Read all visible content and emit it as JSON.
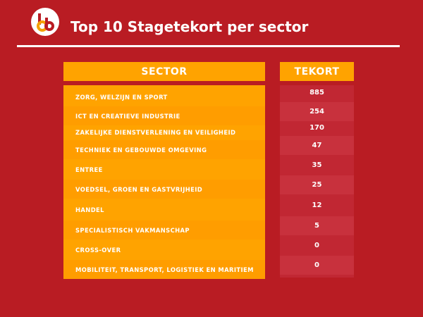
{
  "title": "Top 10 Stagetekort per sector",
  "colors": {
    "background": "#b91c23",
    "header": "#ffa300",
    "sector_fill": "#ffa300",
    "tekort_fill": "#c12733",
    "text": "#ffffff"
  },
  "logo": {
    "icon": "sbb-logo-icon"
  },
  "chart_data": {
    "type": "table",
    "title": "Top 10 Stagetekort per sector",
    "columns": [
      "SECTOR",
      "TEKORT"
    ],
    "rows": [
      {
        "sector": "ZORG, WELZIJN EN SPORT",
        "tekort": "885"
      },
      {
        "sector": "ICT EN CREATIEVE INDUSTRIE",
        "tekort": "254"
      },
      {
        "sector": "ZAKELIJKE DIENSTVERLENING EN VEILIGHEID",
        "tekort": "170"
      },
      {
        "sector": "TECHNIEK EN GEBOUWDE OMGEVING",
        "tekort": "47"
      },
      {
        "sector": "ENTREE",
        "tekort": "35"
      },
      {
        "sector": "VOEDSEL, GROEN EN GASTVRIJHEID",
        "tekort": "25"
      },
      {
        "sector": "HANDEL",
        "tekort": "12"
      },
      {
        "sector": "SPECIALISTISCH VAKMANSCHAP",
        "tekort": "5"
      },
      {
        "sector": "CROSS-OVER",
        "tekort": "0"
      },
      {
        "sector": "MOBILITEIT, TRANSPORT, LOGISTIEK EN MARITIEM",
        "tekort": "0"
      }
    ]
  }
}
